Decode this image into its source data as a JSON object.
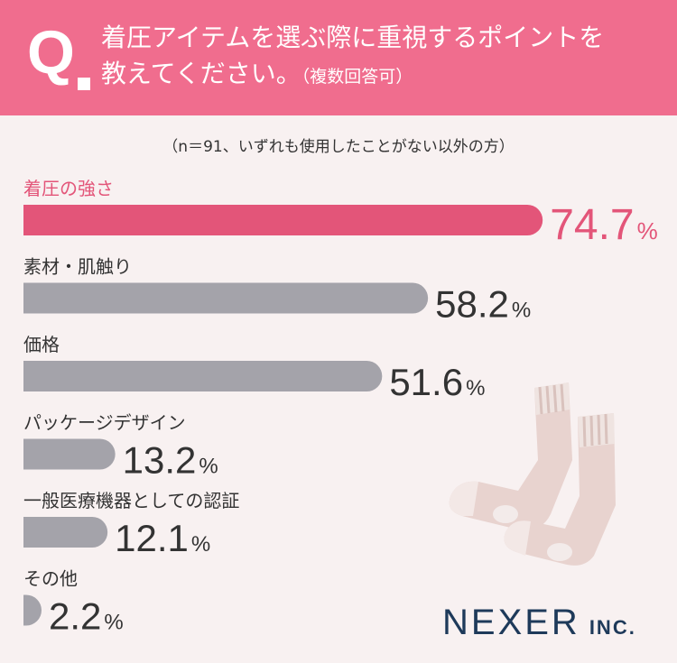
{
  "header": {
    "q_mark": "Q",
    "question_line1": "着圧アイテムを選ぶ際に重視するポイントを",
    "question_line2": "教えてください。",
    "question_sub": "（複数回答可）"
  },
  "note": "（n＝91、いずれも使用したことがない以外の方）",
  "brand": {
    "name": "NEXER",
    "suffix": "INC."
  },
  "colors": {
    "accent": "#e35579",
    "bar_gray": "#a4a3aa",
    "header": "#f06d8e"
  },
  "chart_data": {
    "type": "bar",
    "orientation": "horizontal",
    "categories": [
      "着圧の強さ",
      "素材・肌触り",
      "価格",
      "パッケージデザイン",
      "一般医療機器としての認証",
      "その他"
    ],
    "values": [
      74.7,
      58.2,
      51.6,
      13.2,
      12.1,
      2.2
    ],
    "unit": "%",
    "highlight_index": 0,
    "xlim": [
      0,
      100
    ]
  }
}
